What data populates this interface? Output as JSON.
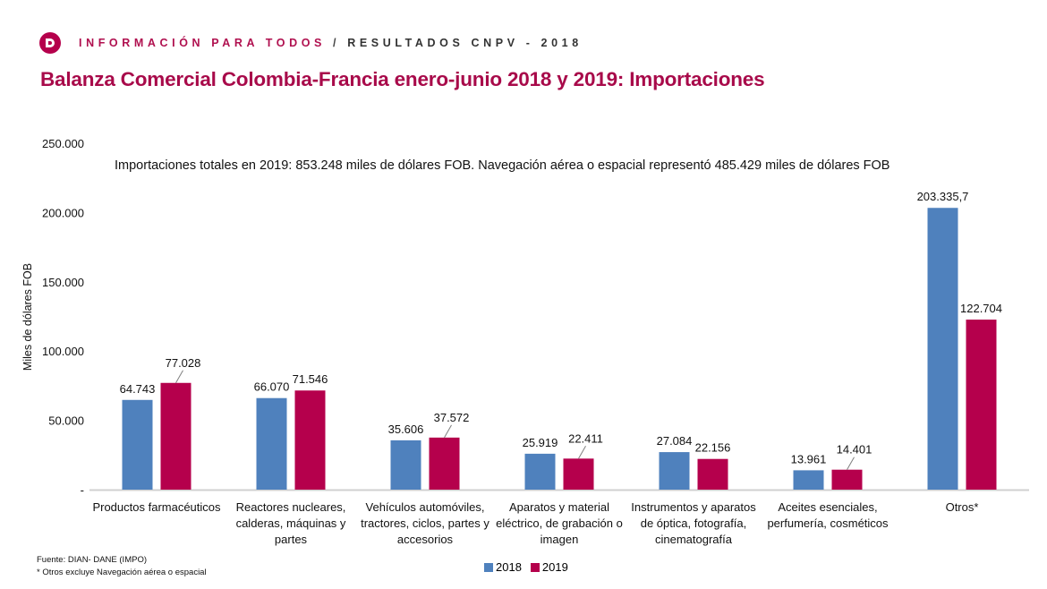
{
  "header": {
    "logo_icon": "dane-logo-icon",
    "tagline_part1": "INFORMACIÓN PARA TODOS",
    "tagline_sep": " / ",
    "tagline_part2": "RESULTADOS CNPV - 2018"
  },
  "title": "Balanza Comercial Colombia-Francia enero-junio 2018 y 2019: Importaciones",
  "note": "Importaciones totales en 2019: 853.248 miles de dólares FOB. Navegación aérea o espacial representó 485.429 miles de dólares FOB",
  "footer": {
    "source": "Fuente: DIAN- DANE (IMPO)",
    "footnote": "* Otros excluye Navegación aérea o espacial"
  },
  "colors": {
    "series_2018": "#4f81bd",
    "series_2019": "#b5004c",
    "brand": "#a80a4a"
  },
  "chart_data": {
    "type": "bar",
    "title": "Balanza Comercial Colombia-Francia enero-junio 2018 y 2019: Importaciones",
    "xlabel": "",
    "ylabel": "Miles de dólares FOB",
    "ylim": [
      0,
      250000
    ],
    "yticks": [
      0,
      50000,
      100000,
      150000,
      200000,
      250000
    ],
    "ytick_labels": [
      "-",
      "50.000",
      "100.000",
      "150.000",
      "200.000",
      "250.000"
    ],
    "grid": false,
    "legend_position": "bottom",
    "categories": [
      [
        "Productos farmacéuticos"
      ],
      [
        "Reactores nucleares,",
        "calderas, máquinas y",
        "partes"
      ],
      [
        "Vehículos automóviles,",
        "tractores, ciclos, partes y",
        "accesorios"
      ],
      [
        "Aparatos y material",
        "eléctrico, de grabación o",
        "imagen"
      ],
      [
        "Instrumentos y aparatos",
        "de óptica, fotografía,",
        "cinematografía"
      ],
      [
        "Aceites esenciales,",
        "perfumería, cosméticos"
      ],
      [
        "Otros*"
      ]
    ],
    "series": [
      {
        "name": "2018",
        "values": [
          64743,
          66070,
          35606,
          25919,
          27084,
          13961,
          203335.7
        ],
        "labels": [
          "64.743",
          "66.070",
          "35.606",
          "25.919",
          "27.084",
          "13.961",
          "203.335,7"
        ]
      },
      {
        "name": "2019",
        "values": [
          77028,
          71546,
          37572,
          22411,
          22156,
          14401,
          122704
        ],
        "labels": [
          "77.028",
          "71.546",
          "37.572",
          "22.411",
          "22.156",
          "14.401",
          "122.704"
        ]
      }
    ]
  }
}
